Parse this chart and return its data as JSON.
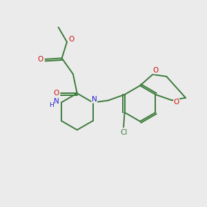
{
  "background_color": "#ebebeb",
  "bond_color": "#3a7a3a",
  "nitrogen_color": "#2020cc",
  "oxygen_color": "#cc1111",
  "chlorine_color": "#3a7a3a",
  "figsize": [
    3.0,
    3.0
  ],
  "dpi": 100,
  "xlim": [
    0,
    10
  ],
  "ylim": [
    0,
    10
  ]
}
